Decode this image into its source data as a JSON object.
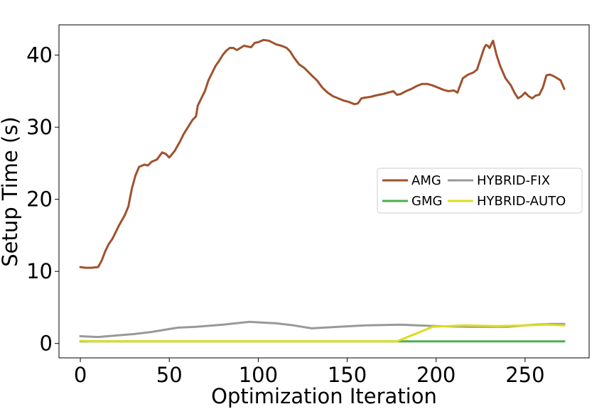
{
  "chart_data": {
    "type": "line",
    "title": "",
    "xlabel": "Optimization Iteration",
    "ylabel": "Setup Time (s)",
    "xlim": [
      -12,
      286
    ],
    "ylim": [
      -2,
      44.2
    ],
    "xticks": [
      0,
      50,
      100,
      150,
      200,
      250
    ],
    "yticks": [
      0,
      10,
      20,
      30,
      40
    ],
    "grid": false,
    "legend_position": "center-right",
    "legend_columns": 2,
    "series": [
      {
        "name": "AMG",
        "color": "#a0522d",
        "x": [
          0,
          3,
          6,
          10,
          12,
          14,
          16,
          18,
          20,
          22,
          25,
          27,
          29,
          31,
          33,
          36,
          38,
          40,
          43,
          46,
          48,
          50,
          53,
          56,
          58,
          60,
          63,
          65,
          66,
          68,
          70,
          72,
          74,
          76,
          78,
          80,
          82,
          84,
          86,
          88,
          90,
          92,
          94,
          96,
          98,
          100,
          103,
          106,
          110,
          113,
          116,
          118,
          120,
          123,
          126,
          130,
          133,
          136,
          139,
          142,
          145,
          148,
          151,
          154,
          156,
          158,
          160,
          163,
          166,
          170,
          173,
          176,
          178,
          180,
          183,
          186,
          189,
          192,
          195,
          198,
          201,
          204,
          207,
          210,
          212,
          213,
          215,
          218,
          221,
          223,
          225,
          227,
          228,
          229,
          230,
          231,
          232,
          234,
          236,
          239,
          242,
          244,
          246,
          248,
          250,
          252,
          254,
          256,
          258,
          260,
          262,
          264,
          266,
          268,
          270,
          272
        ],
        "y": [
          10.6,
          10.5,
          10.5,
          10.6,
          11.5,
          12.8,
          13.8,
          14.5,
          15.5,
          16.5,
          17.8,
          19,
          21.5,
          23.3,
          24.5,
          24.8,
          24.7,
          25.2,
          25.5,
          26.5,
          26.3,
          25.8,
          26.7,
          28,
          29,
          29.8,
          31,
          31.5,
          33,
          34,
          35,
          36.5,
          37.5,
          38.5,
          39.2,
          40,
          40.6,
          41,
          41,
          40.7,
          41,
          41.3,
          41.2,
          41.1,
          41.7,
          41.8,
          42.1,
          42,
          41.5,
          41.3,
          41,
          40.5,
          39.7,
          38.7,
          38.2,
          37.2,
          36.5,
          35.5,
          34.8,
          34.3,
          34,
          33.7,
          33.5,
          33.2,
          33.3,
          34,
          34.1,
          34.2,
          34.4,
          34.6,
          34.8,
          35,
          34.5,
          34.6,
          35,
          35.3,
          35.7,
          36,
          36,
          35.8,
          35.5,
          35.2,
          35,
          35.1,
          34.8,
          35.5,
          36.8,
          37.3,
          37.6,
          38,
          39.5,
          41,
          41.4,
          41.3,
          41,
          41.5,
          42,
          40,
          38.5,
          36.8,
          35.8,
          34.8,
          34,
          34.3,
          34.8,
          34.3,
          34,
          34.4,
          34.5,
          35.5,
          37.2,
          37.3,
          37.1,
          36.8,
          36.5,
          35.3
        ],
        "points": []
      },
      {
        "name": "HYBRID-FIX",
        "color": "#999999",
        "x": [
          0,
          10,
          20,
          30,
          40,
          50,
          55,
          65,
          80,
          95,
          110,
          120,
          130,
          145,
          160,
          180,
          200,
          220,
          240,
          255,
          265,
          272
        ],
        "y": [
          1.0,
          0.9,
          1.1,
          1.3,
          1.6,
          2.0,
          2.2,
          2.3,
          2.6,
          3.0,
          2.8,
          2.5,
          2.1,
          2.3,
          2.5,
          2.6,
          2.4,
          2.3,
          2.3,
          2.6,
          2.7,
          2.7
        ],
        "points": []
      },
      {
        "name": "GMG",
        "color": "#4caf50",
        "x": [
          0,
          272
        ],
        "y": [
          0.3,
          0.3
        ],
        "points": []
      },
      {
        "name": "HYBRID-AUTO",
        "color": "#dddd22",
        "x": [
          0,
          8,
          178,
          198,
          215,
          235,
          250,
          262,
          272
        ],
        "y": [
          0.35,
          0.3,
          0.3,
          2.3,
          2.5,
          2.4,
          2.5,
          2.6,
          2.5
        ],
        "points": []
      }
    ],
    "legend_order": [
      "AMG",
      "GMG",
      "HYBRID-FIX",
      "HYBRID-AUTO"
    ]
  }
}
